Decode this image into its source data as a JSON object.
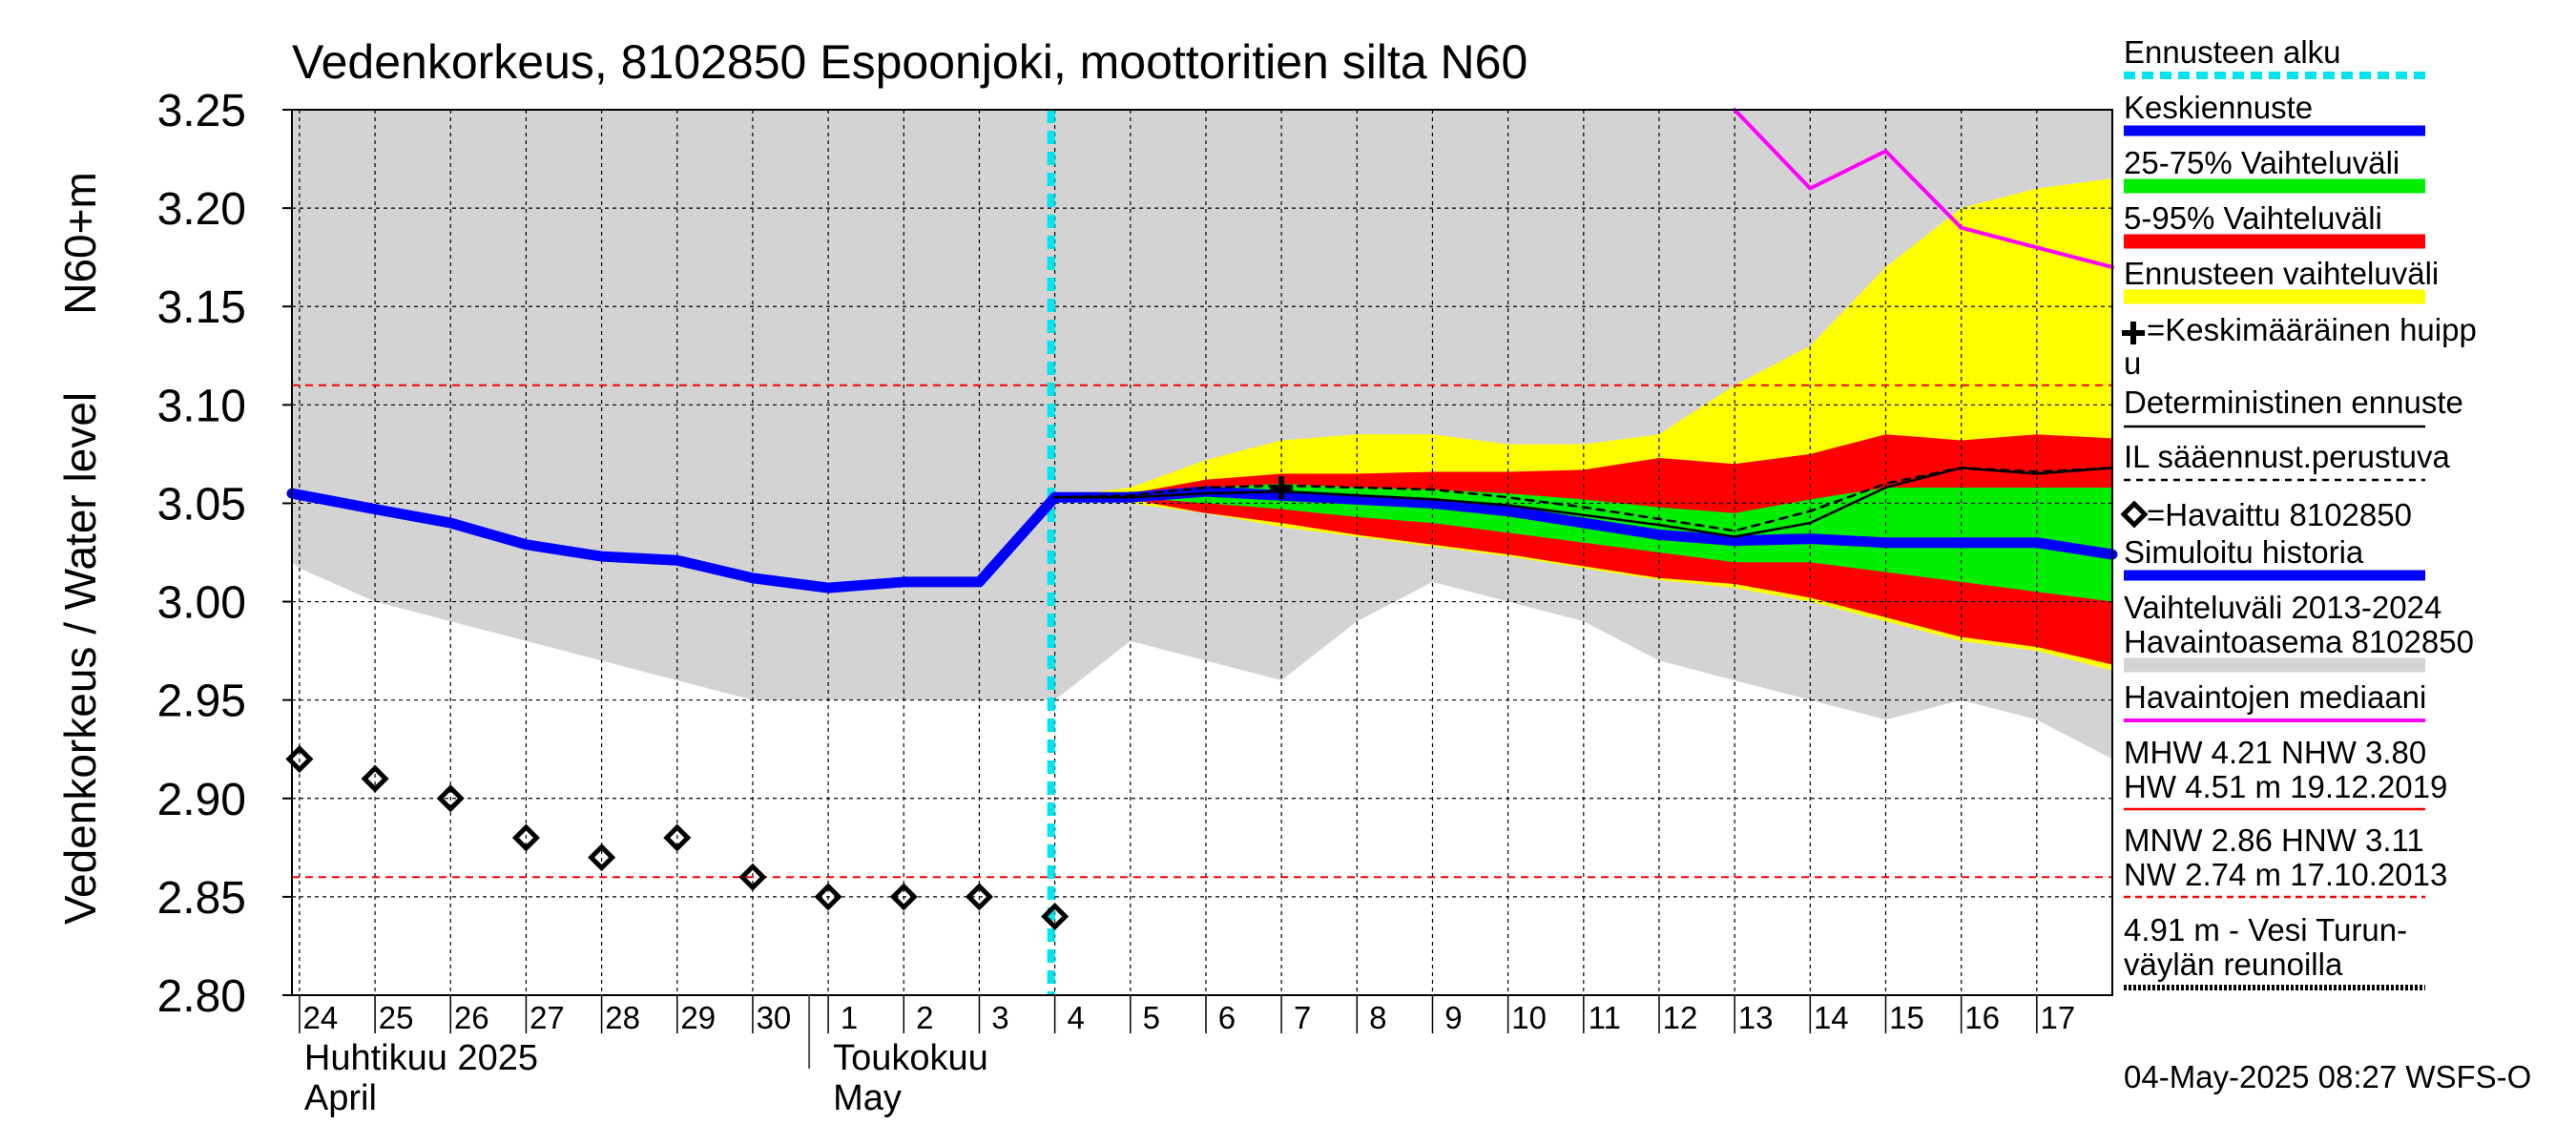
{
  "chart_data": {
    "type": "line",
    "title": "Vedenkorkeus, 8102850 Espoonjoki, moottoritien silta N60",
    "ylabel": "Vedenkorkeus / Water level",
    "yunit": "N60+m",
    "ylim": [
      2.8,
      3.25
    ],
    "yticks": [
      "3.25",
      "3.20",
      "3.15",
      "3.10",
      "3.05",
      "3.00",
      "2.95",
      "2.90",
      "2.85",
      "2.80"
    ],
    "x_start_day_index": -0.1,
    "x_end_day_index": 24.0,
    "x_ticks": [
      {
        "i": 0,
        "label": "24"
      },
      {
        "i": 1,
        "label": "25"
      },
      {
        "i": 2,
        "label": "26"
      },
      {
        "i": 3,
        "label": "27"
      },
      {
        "i": 4,
        "label": "28"
      },
      {
        "i": 5,
        "label": "29"
      },
      {
        "i": 6,
        "label": "30"
      },
      {
        "i": 7,
        "label": "1"
      },
      {
        "i": 8,
        "label": "2"
      },
      {
        "i": 9,
        "label": "3"
      },
      {
        "i": 10,
        "label": "4"
      },
      {
        "i": 11,
        "label": "5"
      },
      {
        "i": 12,
        "label": "6"
      },
      {
        "i": 13,
        "label": "7"
      },
      {
        "i": 14,
        "label": "8"
      },
      {
        "i": 15,
        "label": "9"
      },
      {
        "i": 16,
        "label": "10"
      },
      {
        "i": 17,
        "label": "11"
      },
      {
        "i": 18,
        "label": "12"
      },
      {
        "i": 19,
        "label": "13"
      },
      {
        "i": 20,
        "label": "14"
      },
      {
        "i": 21,
        "label": "15"
      },
      {
        "i": 22,
        "label": "16"
      },
      {
        "i": 23,
        "label": "17"
      }
    ],
    "month_labels": [
      {
        "i": 0,
        "line1": "Huhtikuu  2025",
        "line2": "April"
      },
      {
        "i": 7,
        "line1": "Toukokuu",
        "line2": "May"
      }
    ],
    "reference_lines": [
      {
        "name": "HNW",
        "value": 3.11,
        "color": "#ff0000"
      },
      {
        "name": "MNW",
        "value": 2.86,
        "color": "#ff0000"
      }
    ],
    "forecast_start": 9.95,
    "series": [
      {
        "name": "Vaihteluväli 2013-2024 Havaintoasema 8102850",
        "kind": "band",
        "color": "#d3d3d3",
        "x": [
          -0.1,
          0,
          1,
          2,
          3,
          4,
          5,
          6,
          7,
          8,
          9,
          10,
          11,
          12,
          13,
          14,
          15,
          16,
          17,
          18,
          19,
          20,
          21,
          22,
          23,
          24
        ],
        "lower": [
          3.02,
          3.017,
          3.0,
          2.99,
          2.98,
          2.97,
          2.96,
          2.95,
          2.95,
          2.95,
          2.95,
          2.95,
          2.98,
          2.97,
          2.96,
          2.99,
          3.01,
          3.0,
          2.99,
          2.97,
          2.96,
          2.95,
          2.94,
          2.95,
          2.94,
          2.92
        ],
        "upper": [
          3.25,
          3.25,
          3.25,
          3.25,
          3.25,
          3.25,
          3.25,
          3.25,
          3.25,
          3.25,
          3.25,
          3.25,
          3.25,
          3.25,
          3.25,
          3.25,
          3.25,
          3.25,
          3.25,
          3.25,
          3.25,
          3.25,
          3.25,
          3.25,
          3.25,
          3.25
        ]
      },
      {
        "name": "Ennusteen vaihteluväli",
        "kind": "band",
        "color": "#ffff00",
        "x": [
          10,
          11,
          12,
          13,
          14,
          15,
          16,
          17,
          18,
          19,
          20,
          21,
          22,
          23,
          24
        ],
        "lower": [
          3.053,
          3.05,
          3.045,
          3.038,
          3.033,
          3.028,
          3.023,
          3.017,
          3.011,
          3.007,
          3.0,
          2.99,
          2.98,
          2.975,
          2.965
        ],
        "upper": [
          3.053,
          3.058,
          3.072,
          3.082,
          3.085,
          3.085,
          3.08,
          3.08,
          3.085,
          3.11,
          3.13,
          3.17,
          3.2,
          3.21,
          3.215
        ]
      },
      {
        "name": "5-95% Vaihteluväli",
        "kind": "band",
        "color": "#ff0000",
        "x": [
          10,
          11,
          12,
          13,
          14,
          15,
          16,
          17,
          18,
          19,
          20,
          21,
          22,
          23,
          24
        ],
        "lower": [
          3.053,
          3.052,
          3.045,
          3.04,
          3.034,
          3.029,
          3.024,
          3.018,
          3.012,
          3.009,
          3.002,
          2.992,
          2.982,
          2.977,
          2.968
        ],
        "upper": [
          3.053,
          3.055,
          3.062,
          3.065,
          3.065,
          3.066,
          3.066,
          3.067,
          3.073,
          3.07,
          3.075,
          3.085,
          3.082,
          3.085,
          3.083
        ]
      },
      {
        "name": "25-75% Vaihteluväli",
        "kind": "band",
        "color": "#00ee00",
        "x": [
          10,
          11,
          12,
          13,
          14,
          15,
          16,
          17,
          18,
          19,
          20,
          21,
          22,
          23,
          24
        ],
        "lower": [
          3.053,
          3.053,
          3.05,
          3.047,
          3.043,
          3.04,
          3.035,
          3.03,
          3.025,
          3.02,
          3.02,
          3.015,
          3.01,
          3.005,
          3.0
        ],
        "upper": [
          3.053,
          3.054,
          3.058,
          3.06,
          3.058,
          3.057,
          3.055,
          3.052,
          3.048,
          3.045,
          3.052,
          3.058,
          3.058,
          3.058,
          3.058
        ]
      },
      {
        "name": "Simuloitu historia",
        "kind": "line",
        "color": "#0000ff",
        "width": 11,
        "x": [
          -0.1,
          1,
          2,
          3,
          4,
          5,
          6,
          7,
          8,
          9,
          10
        ],
        "y": [
          3.055,
          3.047,
          3.04,
          3.029,
          3.023,
          3.021,
          3.012,
          3.007,
          3.01,
          3.01,
          3.053
        ]
      },
      {
        "name": "Keskiennuste",
        "kind": "line",
        "color": "#0000ff",
        "width": 11,
        "x": [
          10,
          11,
          12,
          13,
          14,
          15,
          16,
          17,
          18,
          19,
          20,
          21,
          22,
          23,
          24
        ],
        "y": [
          3.053,
          3.053,
          3.056,
          3.054,
          3.052,
          3.05,
          3.046,
          3.04,
          3.034,
          3.031,
          3.032,
          3.03,
          3.03,
          3.03,
          3.024
        ]
      },
      {
        "name": "IL sääennust.perustuva",
        "kind": "line",
        "color": "#000000",
        "width": 2.5,
        "dash": "8,7",
        "x": [
          10,
          11,
          12,
          13,
          14,
          15,
          16,
          17,
          18,
          19,
          20,
          21,
          22,
          23,
          24
        ],
        "y": [
          3.053,
          3.054,
          3.058,
          3.059,
          3.058,
          3.057,
          3.053,
          3.048,
          3.042,
          3.036,
          3.046,
          3.06,
          3.068,
          3.066,
          3.068
        ]
      },
      {
        "name": "Deterministinen ennuste",
        "kind": "line",
        "color": "#000000",
        "width": 2.5,
        "x": [
          10,
          11,
          12,
          13,
          14,
          15,
          16,
          17,
          18,
          19,
          20,
          21,
          22,
          23,
          24
        ],
        "y": [
          3.053,
          3.053,
          3.055,
          3.056,
          3.054,
          3.052,
          3.049,
          3.044,
          3.039,
          3.033,
          3.04,
          3.058,
          3.068,
          3.065,
          3.068
        ]
      },
      {
        "name": "Havaintojen mediaani",
        "kind": "line",
        "color": "#ff00ff",
        "width": 4,
        "x": [
          19,
          20,
          21,
          22,
          23,
          24
        ],
        "y": [
          3.25,
          3.21,
          3.229,
          3.19,
          3.18,
          3.17
        ]
      },
      {
        "name": "Havaittu 8102850",
        "kind": "points",
        "color": "#000000",
        "x": [
          0,
          1,
          2,
          3,
          4,
          5,
          6,
          7,
          8,
          9,
          10
        ],
        "y": [
          2.92,
          2.91,
          2.9,
          2.88,
          2.87,
          2.88,
          2.86,
          2.85,
          2.85,
          2.85,
          2.84
        ]
      },
      {
        "name": "Keskimääräinen huippu",
        "kind": "marker",
        "color": "#000000",
        "x": [
          13
        ],
        "y": [
          3.058
        ]
      }
    ]
  },
  "legend": {
    "forecast_start": "Ennusteen alku",
    "mean_forecast": "Keskiennuste",
    "range_25_75": "25-75% Vaihteluväli",
    "range_5_95": "5-95% Vaihteluväli",
    "forecast_range": "Ennusteen vaihteluväli",
    "mean_peak_line1": "=Keskimääräinen huipp",
    "mean_peak_line2": "u",
    "deterministic": "Deterministinen ennuste",
    "il_based": "IL sääennust.perustuva",
    "observed": "=Havaittu 8102850",
    "simulated": "Simuloitu historia",
    "range_hist_line1": "Vaihteluväli 2013-2024",
    "range_hist_line2": " Havaintoasema 8102850",
    "median": "Havaintojen mediaani",
    "stats_1_line1": "MHW   4.21 NHW   3.80",
    "stats_1_line2": "HW   4.51 m 19.12.2019",
    "stats_2_line1": "MNW   2.86 HNW   3.11",
    "stats_2_line2": "NW   2.74 m 17.10.2013",
    "fairway_line1": "4.91 m - Vesi Turun-",
    "fairway_line2": "väylän reunoilla"
  },
  "footer": {
    "timestamp": "04-May-2025 08:27 WSFS-O"
  },
  "colors": {
    "forecast_start": "#00e5ee",
    "mean_forecast": "#0000ff",
    "range_25_75": "#00ee00",
    "range_5_95": "#ff0000",
    "forecast_range": "#ffff00",
    "historical_range": "#d3d3d3",
    "median": "#ff00ff"
  }
}
